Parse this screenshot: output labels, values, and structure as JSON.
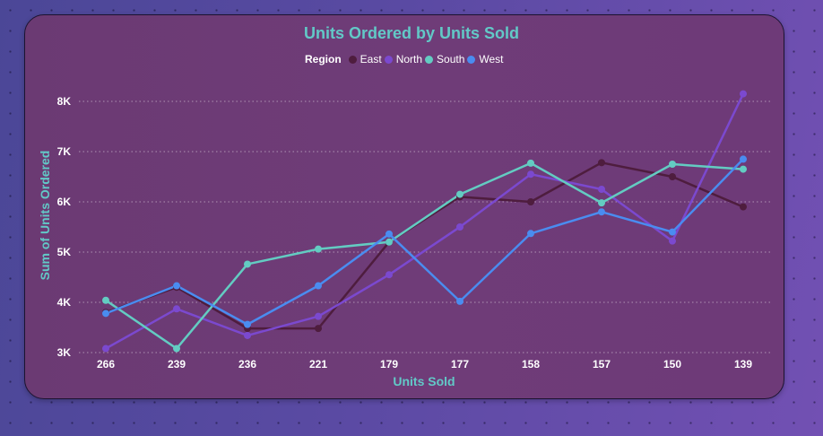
{
  "chart_data": {
    "type": "line",
    "title": "Units Ordered by Units Sold",
    "xlabel": "Units Sold",
    "ylabel": "Sum of Units Ordered",
    "legend_title": "Region",
    "legend_position": "top-center",
    "categories": [
      "266",
      "239",
      "236",
      "221",
      "179",
      "177",
      "158",
      "157",
      "150",
      "139"
    ],
    "yticks": [
      "3K",
      "4K",
      "5K",
      "6K",
      "7K",
      "8K"
    ],
    "ytick_values": [
      3000,
      4000,
      5000,
      6000,
      7000,
      8000
    ],
    "ylim": [
      3000,
      8000
    ],
    "grid": "horizontal-dotted",
    "series": [
      {
        "name": "East",
        "color": "#4e1d3e",
        "values": [
          3800,
          4300,
          3480,
          3480,
          5200,
          6100,
          6000,
          6780,
          6500,
          5900
        ]
      },
      {
        "name": "North",
        "color": "#7b49cf",
        "values": [
          3080,
          3870,
          3340,
          3720,
          4550,
          5500,
          6550,
          6250,
          5220,
          8150
        ]
      },
      {
        "name": "South",
        "color": "#63ccc2",
        "values": [
          4040,
          3080,
          4760,
          5060,
          5200,
          6150,
          6770,
          5980,
          6750,
          6650
        ]
      },
      {
        "name": "West",
        "color": "#4a8cf0",
        "values": [
          3780,
          4330,
          3560,
          4330,
          5360,
          4020,
          5370,
          5800,
          5400,
          6850
        ]
      }
    ]
  }
}
